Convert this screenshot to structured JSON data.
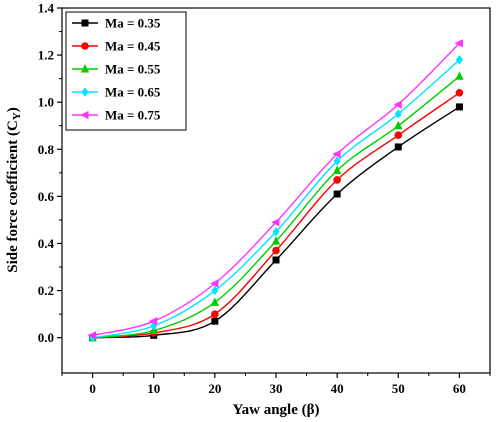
{
  "chart_data": {
    "type": "line",
    "xlabel": "Yaw angle (β)",
    "ylabel": "Side force coefficient (C",
    "ylabel_sub": "Y",
    "ylabel_close": ")",
    "x": [
      0,
      10,
      20,
      30,
      40,
      50,
      60
    ],
    "xlim": [
      -5,
      65
    ],
    "ylim": [
      -0.15,
      1.4
    ],
    "xticks": [
      "0",
      "10",
      "20",
      "30",
      "40",
      "50",
      "60"
    ],
    "yticks": [
      "0.0",
      "0.2",
      "0.4",
      "0.6",
      "0.8",
      "1.0",
      "1.2",
      "1.4"
    ],
    "legend_position": "top-left",
    "grid": false,
    "series": [
      {
        "name": "Ma = 0.35",
        "color": "#000000",
        "marker": "square",
        "values": [
          0.0,
          0.01,
          0.07,
          0.33,
          0.61,
          0.81,
          0.98
        ]
      },
      {
        "name": "Ma = 0.45",
        "color": "#ff0000",
        "marker": "circle",
        "values": [
          0.0,
          0.02,
          0.1,
          0.37,
          0.67,
          0.86,
          1.04
        ]
      },
      {
        "name": "Ma = 0.55",
        "color": "#00cc00",
        "marker": "triangle-up",
        "values": [
          0.0,
          0.03,
          0.15,
          0.41,
          0.71,
          0.9,
          1.11
        ]
      },
      {
        "name": "Ma = 0.65",
        "color": "#00e5ff",
        "marker": "diamond",
        "values": [
          0.0,
          0.05,
          0.2,
          0.45,
          0.75,
          0.95,
          1.18
        ]
      },
      {
        "name": "Ma = 0.75",
        "color": "#ff33ff",
        "marker": "triangle-left",
        "values": [
          0.01,
          0.07,
          0.23,
          0.49,
          0.78,
          0.99,
          1.25
        ]
      }
    ]
  }
}
